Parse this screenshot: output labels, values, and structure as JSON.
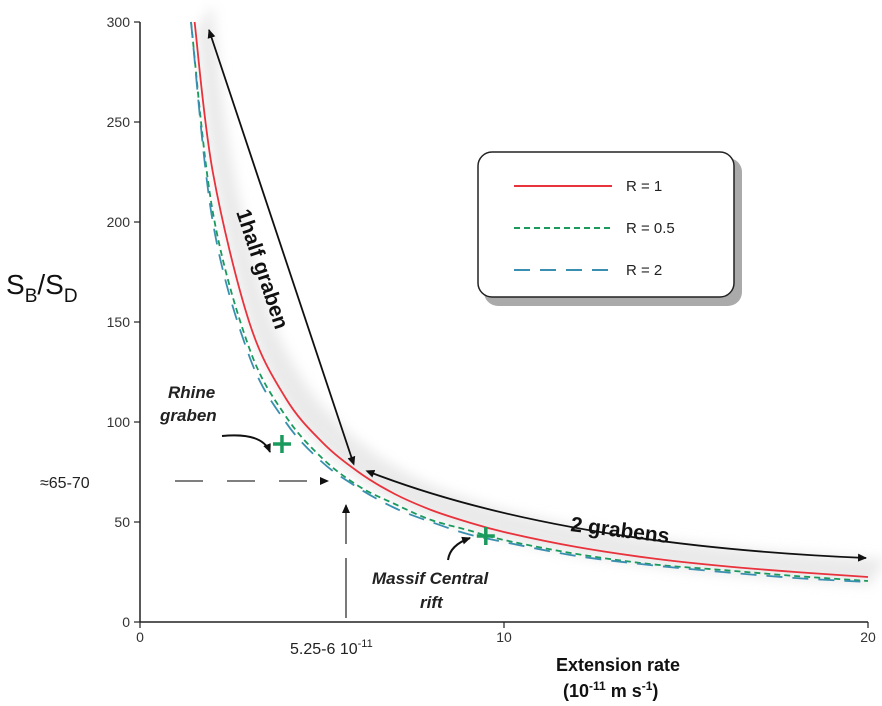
{
  "chart_data": {
    "type": "line",
    "xlabel": "Extension rate",
    "xlabel_unit": {
      "base": "(10",
      "exp": "-11",
      "mid": " m s",
      "exp2": "-1",
      "end": ")"
    },
    "ylabel": {
      "base1": "S",
      "sub1": "B",
      "slash": "/S",
      "sub2": "D"
    },
    "xlim": [
      0,
      20
    ],
    "ylim": [
      0,
      300
    ],
    "x_ticks": [
      "0",
      "10",
      "20"
    ],
    "y_ticks": [
      "0",
      "50",
      "100",
      "150",
      "200",
      "250",
      "300"
    ],
    "grid": false,
    "legend_position": "top-right",
    "series": [
      {
        "name": "R = 1",
        "color": "#e8323c",
        "dash": "solid",
        "x": [
          1.5,
          2,
          3,
          4,
          5,
          6,
          7,
          8,
          9,
          10,
          12,
          14,
          16,
          18,
          20
        ],
        "y": [
          300,
          225,
          150,
          112,
          90,
          75,
          64,
          56,
          50,
          45,
          37.5,
          32,
          28,
          25,
          22.5
        ]
      },
      {
        "name": "R = 0.5",
        "color": "#1a9a5c",
        "dash": "dashed",
        "x": [
          1.4,
          2,
          3,
          4,
          5,
          6,
          7,
          8,
          9,
          10,
          12,
          14,
          16,
          18,
          20
        ],
        "y": [
          300,
          205,
          137,
          103,
          82,
          68,
          59,
          51,
          46,
          41,
          34,
          29,
          26,
          23,
          20.5
        ]
      },
      {
        "name": "R = 2",
        "color": "#3a8fb0",
        "dash": "long-dash",
        "x": [
          1.4,
          2,
          3,
          4,
          5,
          6,
          7,
          8,
          9,
          10,
          12,
          14,
          16,
          18,
          20
        ],
        "y": [
          300,
          200,
          133,
          100,
          80,
          67,
          57,
          50,
          44,
          40,
          33,
          28.5,
          25,
          22,
          20
        ]
      }
    ],
    "markers": [
      {
        "label_lines": [
          "Rhine",
          "graben"
        ],
        "x": 3.9,
        "y": 89
      },
      {
        "label_lines": [
          "Massif Central",
          "rift"
        ],
        "x": 9.5,
        "y": 43
      }
    ],
    "annotations": {
      "half_graben": "1half graben",
      "two_grabens": "2 grabens",
      "y_estimate": "≈65-70",
      "x_estimate": "5.25-6 10",
      "x_estimate_exp": "-11"
    }
  }
}
